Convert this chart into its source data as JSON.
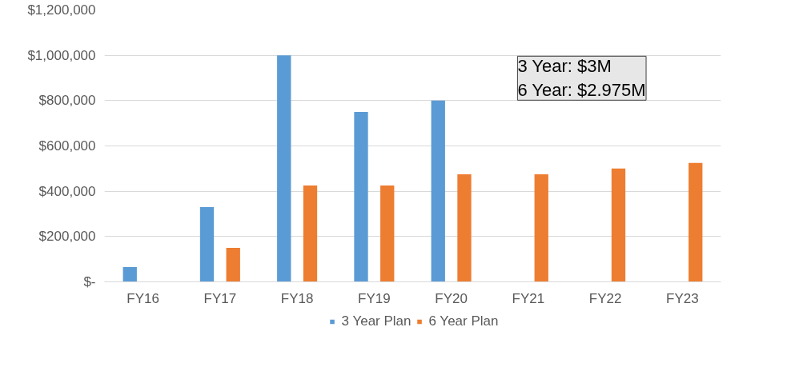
{
  "chart_data": {
    "type": "bar",
    "categories": [
      "FY16",
      "FY17",
      "FY18",
      "FY19",
      "FY20",
      "FY21",
      "FY22",
      "FY23"
    ],
    "series": [
      {
        "name": "3 Year Plan",
        "color": "#5b9bd5",
        "values": [
          65000,
          330000,
          1000000,
          750000,
          800000,
          null,
          null,
          null
        ]
      },
      {
        "name": "6 Year Plan",
        "color": "#ed7d31",
        "values": [
          null,
          150000,
          425000,
          425000,
          475000,
          475000,
          500000,
          525000
        ]
      }
    ],
    "ylim": [
      0,
      1200000
    ],
    "yticks": [
      {
        "value": 0,
        "label": "$-"
      },
      {
        "value": 200000,
        "label": "$200,000"
      },
      {
        "value": 400000,
        "label": "$400,000"
      },
      {
        "value": 600000,
        "label": "$600,000"
      },
      {
        "value": 800000,
        "label": "$800,000"
      },
      {
        "value": 1000000,
        "label": "$1,000,000"
      },
      {
        "value": 1200000,
        "label": "$1,200,000"
      }
    ],
    "grid": "y",
    "legend": "bottom",
    "annotations": [
      "3 Year: $3M",
      "6 Year: $2.975M"
    ]
  }
}
